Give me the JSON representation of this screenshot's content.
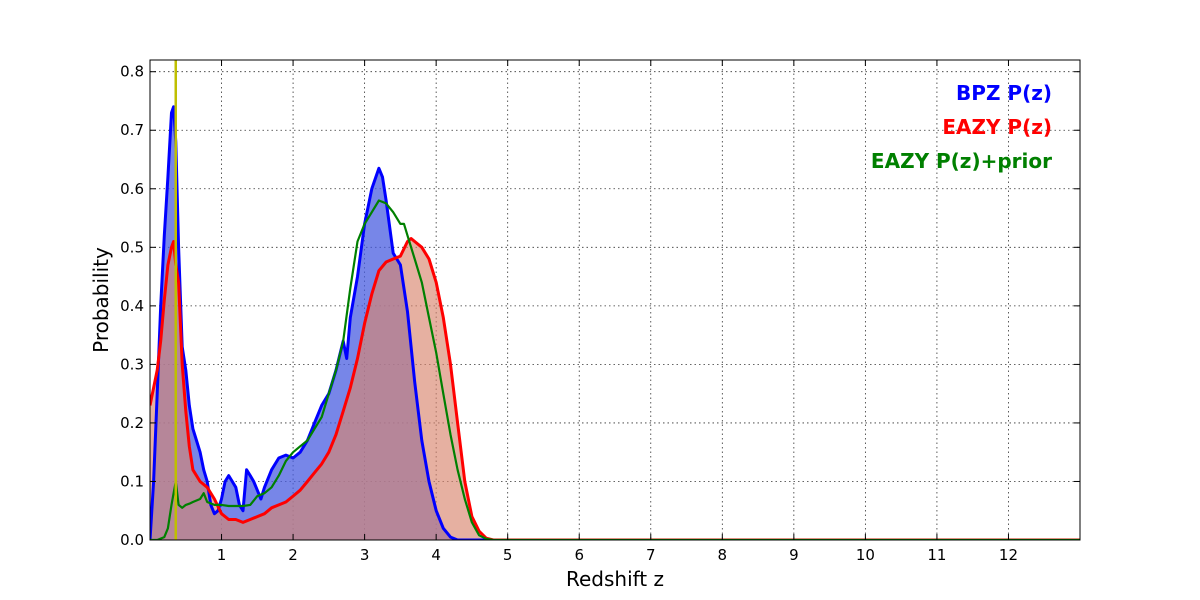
{
  "chart_data": {
    "type": "area",
    "title": "",
    "xlabel": "Redshift z",
    "ylabel": "Probability",
    "xlim": [
      0,
      13
    ],
    "ylim": [
      0,
      0.82
    ],
    "x_ticks": [
      1,
      2,
      3,
      4,
      5,
      6,
      7,
      8,
      9,
      10,
      11,
      12
    ],
    "y_ticks": [
      0.0,
      0.1,
      0.2,
      0.3,
      0.4,
      0.5,
      0.6,
      0.7,
      0.8
    ],
    "x_tick_labels": [
      "1",
      "2",
      "3",
      "4",
      "5",
      "6",
      "7",
      "8",
      "9",
      "10",
      "11",
      "12"
    ],
    "y_tick_labels": [
      "0.0",
      "0.1",
      "0.2",
      "0.3",
      "0.4",
      "0.5",
      "0.6",
      "0.7",
      "0.8"
    ],
    "grid": true,
    "legend_position": "top-right",
    "vertical_marker": {
      "x": 0.36,
      "color": "#bfbf00"
    },
    "series": [
      {
        "name": "BPZ P(z)",
        "color": "#0000ff",
        "fill": "#4a5ee0",
        "fill_opacity": 0.75,
        "x": [
          0.0,
          0.05,
          0.1,
          0.15,
          0.2,
          0.25,
          0.3,
          0.33,
          0.36,
          0.4,
          0.45,
          0.5,
          0.55,
          0.6,
          0.65,
          0.7,
          0.75,
          0.8,
          0.85,
          0.9,
          0.95,
          1.0,
          1.05,
          1.1,
          1.15,
          1.2,
          1.25,
          1.3,
          1.35,
          1.4,
          1.45,
          1.5,
          1.55,
          1.6,
          1.7,
          1.8,
          1.9,
          2.0,
          2.1,
          2.2,
          2.3,
          2.4,
          2.5,
          2.6,
          2.7,
          2.75,
          2.8,
          2.9,
          3.0,
          3.1,
          3.2,
          3.25,
          3.3,
          3.4,
          3.5,
          3.6,
          3.7,
          3.8,
          3.9,
          4.0,
          4.1,
          4.2,
          4.3,
          4.4,
          4.5,
          4.6,
          4.7,
          5.0,
          6.0,
          8.0,
          10.0,
          13.0
        ],
        "y": [
          0.0,
          0.1,
          0.25,
          0.4,
          0.52,
          0.62,
          0.73,
          0.74,
          0.68,
          0.5,
          0.33,
          0.29,
          0.23,
          0.19,
          0.17,
          0.15,
          0.12,
          0.1,
          0.06,
          0.045,
          0.05,
          0.07,
          0.1,
          0.11,
          0.1,
          0.09,
          0.06,
          0.05,
          0.12,
          0.11,
          0.1,
          0.085,
          0.07,
          0.09,
          0.12,
          0.14,
          0.145,
          0.14,
          0.15,
          0.17,
          0.2,
          0.23,
          0.25,
          0.29,
          0.34,
          0.31,
          0.38,
          0.45,
          0.54,
          0.6,
          0.635,
          0.62,
          0.58,
          0.49,
          0.47,
          0.39,
          0.27,
          0.17,
          0.1,
          0.05,
          0.02,
          0.005,
          0.0,
          0.0,
          0.0,
          0.0,
          0.0,
          0.0,
          0.0,
          0.0,
          0.0,
          0.0
        ]
      },
      {
        "name": "EAZY P(z)",
        "color": "#ff0000",
        "fill": "#d9856f",
        "fill_opacity": 0.65,
        "x": [
          0.0,
          0.05,
          0.1,
          0.15,
          0.2,
          0.25,
          0.3,
          0.33,
          0.36,
          0.4,
          0.45,
          0.5,
          0.55,
          0.6,
          0.7,
          0.8,
          0.9,
          1.0,
          1.1,
          1.2,
          1.3,
          1.4,
          1.5,
          1.6,
          1.7,
          1.8,
          1.9,
          2.0,
          2.1,
          2.2,
          2.3,
          2.4,
          2.5,
          2.6,
          2.7,
          2.8,
          2.9,
          3.0,
          3.1,
          3.2,
          3.3,
          3.4,
          3.5,
          3.6,
          3.65,
          3.7,
          3.8,
          3.9,
          4.0,
          4.1,
          4.2,
          4.3,
          4.4,
          4.5,
          4.6,
          4.7,
          4.8,
          5.0,
          6.0,
          8.0,
          10.0,
          13.0
        ],
        "y": [
          0.23,
          0.26,
          0.29,
          0.34,
          0.41,
          0.47,
          0.5,
          0.51,
          0.47,
          0.44,
          0.3,
          0.22,
          0.16,
          0.12,
          0.1,
          0.09,
          0.07,
          0.045,
          0.035,
          0.035,
          0.03,
          0.035,
          0.04,
          0.045,
          0.055,
          0.06,
          0.065,
          0.075,
          0.085,
          0.1,
          0.115,
          0.13,
          0.15,
          0.18,
          0.22,
          0.26,
          0.31,
          0.37,
          0.42,
          0.46,
          0.475,
          0.48,
          0.485,
          0.51,
          0.515,
          0.51,
          0.5,
          0.48,
          0.44,
          0.38,
          0.3,
          0.2,
          0.1,
          0.04,
          0.015,
          0.003,
          0.0,
          0.0,
          0.0,
          0.0,
          0.0,
          0.0
        ]
      },
      {
        "name": "EAZY P(z)+prior",
        "color": "#008000",
        "fill": "",
        "fill_opacity": 0,
        "x": [
          0.0,
          0.1,
          0.2,
          0.25,
          0.3,
          0.33,
          0.36,
          0.4,
          0.45,
          0.5,
          0.55,
          0.6,
          0.7,
          0.75,
          0.8,
          0.9,
          1.0,
          1.1,
          1.2,
          1.3,
          1.4,
          1.5,
          1.6,
          1.7,
          1.8,
          1.9,
          2.0,
          2.1,
          2.2,
          2.3,
          2.4,
          2.5,
          2.6,
          2.7,
          2.8,
          2.9,
          3.0,
          3.1,
          3.2,
          3.3,
          3.4,
          3.5,
          3.55,
          3.6,
          3.7,
          3.8,
          3.9,
          4.0,
          4.1,
          4.2,
          4.3,
          4.4,
          4.5,
          4.6,
          4.7,
          4.8,
          5.0,
          6.0,
          8.0,
          10.0,
          13.0
        ],
        "y": [
          0.0,
          0.0,
          0.005,
          0.02,
          0.06,
          0.08,
          0.1,
          0.06,
          0.055,
          0.06,
          0.062,
          0.065,
          0.07,
          0.08,
          0.065,
          0.06,
          0.06,
          0.058,
          0.058,
          0.058,
          0.06,
          0.075,
          0.08,
          0.09,
          0.11,
          0.135,
          0.15,
          0.16,
          0.17,
          0.19,
          0.21,
          0.25,
          0.29,
          0.34,
          0.43,
          0.51,
          0.54,
          0.56,
          0.58,
          0.575,
          0.56,
          0.54,
          0.54,
          0.52,
          0.48,
          0.44,
          0.38,
          0.32,
          0.25,
          0.18,
          0.12,
          0.07,
          0.03,
          0.008,
          0.002,
          0.0,
          0.0,
          0.0,
          0.0,
          0.0,
          0.0
        ]
      }
    ],
    "overlap_fill": "#8c4ea0"
  }
}
